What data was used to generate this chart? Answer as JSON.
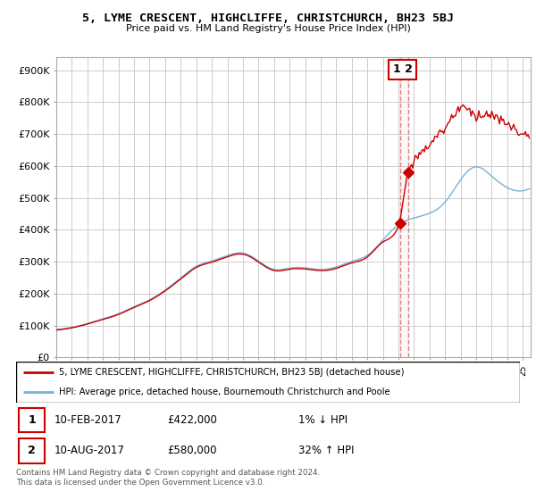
{
  "title": "5, LYME CRESCENT, HIGHCLIFFE, CHRISTCHURCH, BH23 5BJ",
  "subtitle": "Price paid vs. HM Land Registry's House Price Index (HPI)",
  "footer": "Contains HM Land Registry data © Crown copyright and database right 2024.\nThis data is licensed under the Open Government Licence v3.0.",
  "legend_line1": "5, LYME CRESCENT, HIGHCLIFFE, CHRISTCHURCH, BH23 5BJ (detached house)",
  "legend_line2": "HPI: Average price, detached house, Bournemouth Christchurch and Poole",
  "sale1_date": "10-FEB-2017",
  "sale1_price": "£422,000",
  "sale1_hpi": "1% ↓ HPI",
  "sale2_date": "10-AUG-2017",
  "sale2_price": "£580,000",
  "sale2_hpi": "32% ↑ HPI",
  "ylim": [
    0,
    940000
  ],
  "yticks": [
    0,
    100000,
    200000,
    300000,
    400000,
    500000,
    600000,
    700000,
    800000,
    900000
  ],
  "ytick_labels": [
    "£0",
    "£100K",
    "£200K",
    "£300K",
    "£400K",
    "£500K",
    "£600K",
    "£700K",
    "£800K",
    "£900K"
  ],
  "xlim_start": 1995.0,
  "xlim_end": 2025.5,
  "sale1_x": 2017.117,
  "sale1_y": 422000,
  "sale2_x": 2017.617,
  "sale2_y": 580000,
  "line_color_property": "#cc0000",
  "line_color_hpi": "#7ab0d4",
  "sale_marker_color": "#cc0000",
  "vline_color": "#e08080",
  "highlight_color": "#e8d0d0",
  "background_color": "#ffffff",
  "grid_color": "#cccccc"
}
